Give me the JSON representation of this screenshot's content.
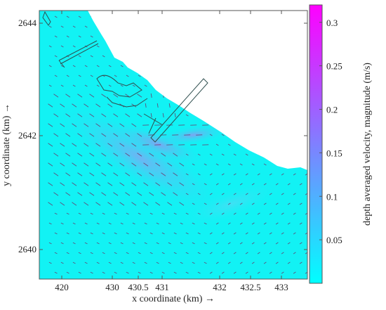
{
  "chart_data": {
    "type": "heatmap",
    "title": "",
    "xlabel": "x coordinate (km) →",
    "ylabel": "y coordinate (km) →",
    "x_ticks": [
      "420",
      "430",
      "430.5",
      "431",
      "432",
      "432.5",
      "433"
    ],
    "y_ticks": [
      "2640",
      "2642",
      "2644"
    ],
    "colorbar": {
      "label": "depth averaged velocity, magnitude (m/s)",
      "ticks": [
        "0.05",
        "0.1",
        "0.15",
        "0.2",
        "0.25",
        "0.3"
      ],
      "range": [
        0,
        0.32
      ],
      "colormap": [
        "#00ffff",
        "#ff00ff"
      ]
    },
    "grid": false,
    "vector_overlay": true
  },
  "colors": {
    "sea": "#12f2f4",
    "land": "#ffffff",
    "low_speed": "#00ffff",
    "high_speed": "#ff00ff",
    "vector": "#7a1b54",
    "structure": "#2f4f4f"
  }
}
